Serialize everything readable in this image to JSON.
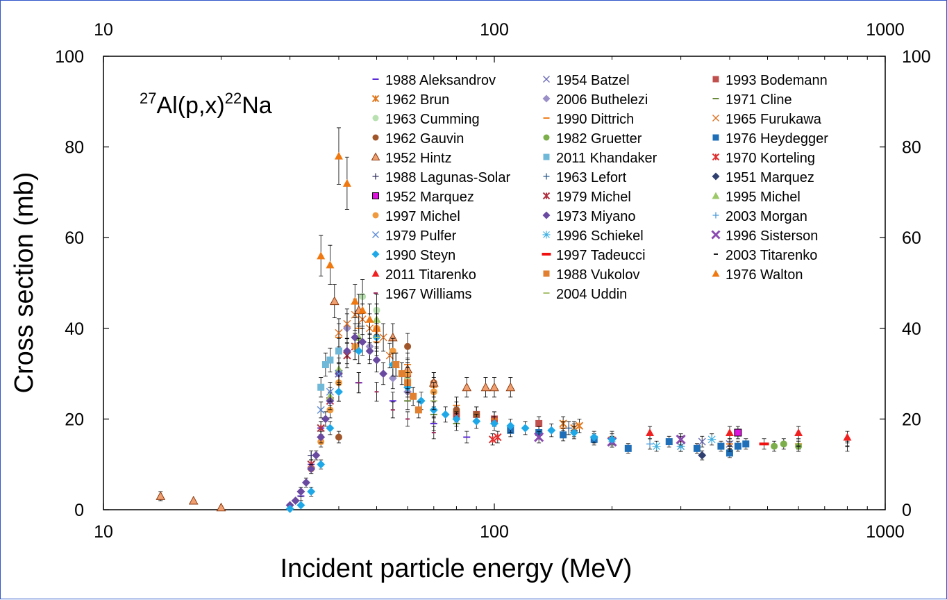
{
  "chart_data": {
    "type": "scatter",
    "title": "",
    "reaction_parts": {
      "mass_number": "27",
      "target_and_reaction": "Al(p,x)",
      "product_mass": "22",
      "product": "Na"
    },
    "xlabel": "Incident particle energy (MeV)",
    "ylabel": "Cross section (mb)",
    "xscale": "log",
    "xlim": [
      10,
      1000
    ],
    "ylim": [
      0,
      100
    ],
    "x_tick_labels": [
      "10",
      "100",
      "1000"
    ],
    "x_tick_values": [
      10,
      100,
      1000
    ],
    "y_tick_labels": [
      "0",
      "20",
      "40",
      "60",
      "80",
      "100"
    ],
    "y_tick_values": [
      0,
      20,
      40,
      60,
      80,
      100
    ],
    "legend_position": "top-right inside plot",
    "series": [
      {
        "name": "1988 Aleksandrov",
        "marker": "dash",
        "color": "#5b2bd8",
        "x": [
          32,
          34,
          36,
          40,
          45,
          55,
          70,
          85
        ],
        "y": [
          3,
          10,
          18,
          26,
          28,
          24,
          19,
          16
        ]
      },
      {
        "name": "1954 Batzel",
        "marker": "x",
        "color": "#6a6ab8",
        "x": [
          300,
          340,
          400
        ],
        "y": [
          14,
          15,
          14.5
        ]
      },
      {
        "name": "1993 Bodemann",
        "marker": "square",
        "color": "#c0504d",
        "x": [
          60,
          80,
          90,
          100,
          130
        ],
        "y": [
          30,
          21,
          21,
          20,
          19
        ]
      },
      {
        "name": "1962 Brun",
        "marker": "xstar",
        "color": "#e07820",
        "x": [
          150,
          160,
          165
        ],
        "y": [
          19,
          18,
          18.5
        ]
      },
      {
        "name": "2006 Buthelezi",
        "marker": "diamond",
        "color": "#9b8fc8",
        "x": [
          42,
          48,
          55,
          60
        ],
        "y": [
          40,
          36,
          29,
          26
        ]
      },
      {
        "name": "1971 Cline",
        "marker": "dash",
        "color": "#6a8a3a",
        "x": [
          60,
          70,
          80
        ],
        "y": [
          24,
          21,
          19
        ]
      },
      {
        "name": "1963 Cumming",
        "marker": "circle",
        "color": "#b8e0b0",
        "x": [
          46,
          50
        ],
        "y": [
          47,
          44
        ]
      },
      {
        "name": "1990 Dittrich",
        "marker": "dash",
        "color": "#f08020",
        "x": [
          40,
          45,
          50,
          60,
          70,
          80,
          100,
          150,
          200,
          300,
          400,
          600
        ],
        "y": [
          38,
          40,
          37,
          32,
          27,
          23,
          20,
          18,
          16,
          15,
          14.5,
          14.5
        ]
      },
      {
        "name": "1965 Furukawa",
        "marker": "x",
        "color": "#e07020",
        "x": [
          40,
          42,
          44,
          46,
          48,
          50,
          52,
          54,
          56
        ],
        "y": [
          39,
          41,
          43,
          42,
          40,
          39,
          38,
          34,
          32
        ]
      },
      {
        "name": "1962 Gauvin",
        "marker": "circle",
        "color": "#a0562a",
        "x": [
          40,
          60,
          70,
          80,
          90
        ],
        "y": [
          16,
          36,
          28,
          22,
          21
        ]
      },
      {
        "name": "1982 Gruetter",
        "marker": "circle",
        "color": "#7cae4a",
        "x": [
          520,
          550,
          600
        ],
        "y": [
          14,
          14.5,
          14
        ]
      },
      {
        "name": "1976 Heydegger",
        "marker": "square",
        "color": "#1f6fb8",
        "x": [
          110,
          130,
          150,
          180,
          220,
          280,
          330,
          380,
          400,
          420,
          440
        ],
        "y": [
          17.5,
          17,
          16.5,
          15.5,
          13.5,
          15,
          13.5,
          14,
          12.5,
          14,
          14.5
        ]
      },
      {
        "name": "1952 Hintz",
        "marker": "triangle-outlined",
        "color": "#f0a070",
        "x": [
          14,
          17,
          20,
          39,
          45,
          55,
          60,
          70,
          85,
          95,
          100,
          110
        ],
        "y": [
          3,
          2,
          0.5,
          46,
          44,
          38,
          31,
          28,
          27,
          27,
          27,
          27
        ]
      },
      {
        "name": "2011 Khandaker",
        "marker": "square",
        "color": "#70b8d8",
        "x": [
          36,
          37,
          38,
          40
        ],
        "y": [
          27,
          32,
          33,
          35
        ]
      },
      {
        "name": "1970 Korteling",
        "marker": "xstar",
        "color": "#e03030",
        "x": [
          99,
          102
        ],
        "y": [
          15.5,
          16
        ]
      },
      {
        "name": "1988 Lagunas-Solar",
        "marker": "plus",
        "color": "#303060",
        "x": [
          30,
          32,
          34,
          36,
          38
        ],
        "y": [
          1,
          4,
          12,
          16,
          24
        ]
      },
      {
        "name": "1963 Lefort",
        "marker": "plus",
        "color": "#2a5a8a",
        "x": [
          155,
          160
        ],
        "y": [
          18,
          17.5
        ]
      },
      {
        "name": "1951 Marquez",
        "marker": "diamond",
        "color": "#2f3f6f",
        "x": [
          340
        ],
        "y": [
          12
        ]
      },
      {
        "name": "1952 Marquez",
        "marker": "square-magenta",
        "color": "#e010e0",
        "x": [
          420
        ],
        "y": [
          17
        ]
      },
      {
        "name": "1979 Michel",
        "marker": "xstar",
        "color": "#b03040",
        "x": [
          34,
          36,
          38,
          40,
          42,
          44
        ],
        "y": [
          10,
          18,
          24,
          30,
          34,
          36
        ]
      },
      {
        "name": "1995 Michel",
        "marker": "triangle",
        "color": "#9cc868",
        "x": [
          38,
          40,
          45,
          50
        ],
        "y": [
          25,
          31,
          38,
          42
        ]
      },
      {
        "name": "1997 Michel",
        "marker": "circle",
        "color": "#f09a40",
        "x": [
          34,
          36,
          38,
          40,
          44,
          50,
          55,
          60,
          70
        ],
        "y": [
          9,
          15,
          22,
          28,
          36,
          40,
          35,
          30,
          26
        ]
      },
      {
        "name": "1973 Miyano",
        "marker": "diamond",
        "color": "#6a4aa0",
        "x": [
          30,
          31,
          32,
          33,
          34,
          35,
          36,
          37,
          38,
          40,
          42,
          44,
          46,
          48,
          50,
          52
        ],
        "y": [
          1,
          2,
          4,
          6,
          9,
          12,
          16,
          20,
          24,
          30,
          35,
          38,
          37,
          35,
          33,
          30
        ]
      },
      {
        "name": "2003 Morgan",
        "marker": "plus",
        "color": "#4a9ad8",
        "x": [
          200,
          250,
          300
        ],
        "y": [
          15,
          14.5,
          14
        ]
      },
      {
        "name": "1979 Pulfer",
        "marker": "x",
        "color": "#5a8ad8",
        "x": [
          36,
          38,
          40
        ],
        "y": [
          22,
          26,
          30
        ]
      },
      {
        "name": "1996 Schiekel",
        "marker": "asterisk",
        "color": "#40b0e0",
        "x": [
          260,
          300,
          360
        ],
        "y": [
          14,
          14,
          15.5
        ]
      },
      {
        "name": "1996 Sisterson",
        "marker": "x-bold",
        "color": "#8a4ab0",
        "x": [
          130,
          200,
          300
        ],
        "y": [
          16,
          15,
          15.5
        ]
      },
      {
        "name": "1990 Steyn",
        "marker": "diamond",
        "color": "#1ea8e8",
        "x": [
          30,
          32,
          34,
          36,
          38,
          40,
          45,
          50,
          55,
          60,
          65,
          70,
          75,
          80,
          90,
          100,
          110,
          120,
          140,
          160,
          180,
          200
        ],
        "y": [
          0.2,
          1,
          4,
          10,
          18,
          26,
          35,
          38,
          32,
          27,
          24,
          22,
          21,
          20,
          19.5,
          19,
          18.5,
          18,
          17.5,
          17,
          16,
          15.5
        ]
      },
      {
        "name": "1997 Tadeucci",
        "marker": "dash-bold",
        "color": "#f01010",
        "x": [
          490
        ],
        "y": [
          14.5
        ]
      },
      {
        "name": "2003 Titarenko",
        "marker": "dash-small",
        "color": "#202020",
        "x": [
          400,
          600,
          800
        ],
        "y": [
          14,
          14,
          14
        ]
      },
      {
        "name": "2011 Titarenko",
        "marker": "triangle",
        "color": "#f02020",
        "x": [
          250,
          400,
          600,
          800
        ],
        "y": [
          17,
          17,
          17,
          16
        ]
      },
      {
        "name": "1988 Vukolov",
        "marker": "square",
        "color": "#e08030",
        "x": [
          56,
          58,
          60,
          62,
          64
        ],
        "y": [
          32,
          30,
          28,
          25,
          22
        ]
      },
      {
        "name": "1976 Walton",
        "marker": "triangle",
        "color": "#f07810",
        "x": [
          36,
          38,
          40,
          42,
          44,
          46,
          48,
          50
        ],
        "y": [
          56,
          54,
          78,
          72,
          46,
          44,
          42,
          40
        ]
      },
      {
        "name": "1967 Williams",
        "marker": "dash-small",
        "color": "#a03060",
        "x": [
          45,
          50,
          55,
          60,
          70
        ],
        "y": [
          28,
          26,
          22,
          20,
          17
        ]
      },
      {
        "name": "2004 Uddin",
        "marker": "dash",
        "color": "#a8c070",
        "x": [
          50,
          60,
          70
        ],
        "y": [
          38,
          29,
          24
        ]
      }
    ]
  }
}
